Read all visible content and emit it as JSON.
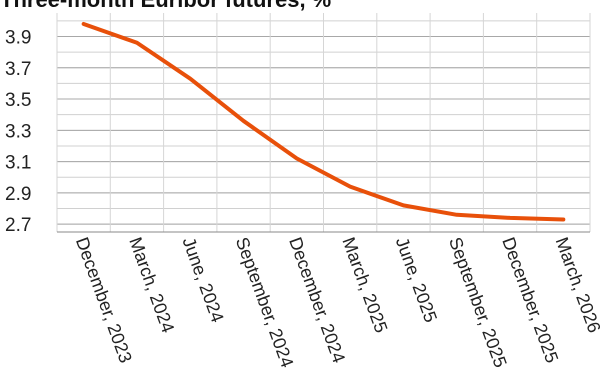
{
  "chart_data": {
    "type": "line",
    "title": "Three-month Euribor futures, %",
    "categories": [
      "December, 2023",
      "March, 2024",
      "June, 2024",
      "September, 2024",
      "December, 2024",
      "March, 2025",
      "June, 2025",
      "September, 2025",
      "December, 2025",
      "March, 2026"
    ],
    "series": [
      {
        "name": "",
        "color": "#e8500a",
        "values": [
          3.98,
          3.86,
          3.63,
          3.36,
          3.12,
          2.94,
          2.82,
          2.76,
          2.74,
          2.73
        ]
      }
    ],
    "ylim": [
      2.65,
      4.05
    ],
    "yticks": [
      2.7,
      2.9,
      3.1,
      3.3,
      3.5,
      3.7,
      3.9
    ],
    "grid": true,
    "xlabel": "",
    "ylabel": ""
  }
}
